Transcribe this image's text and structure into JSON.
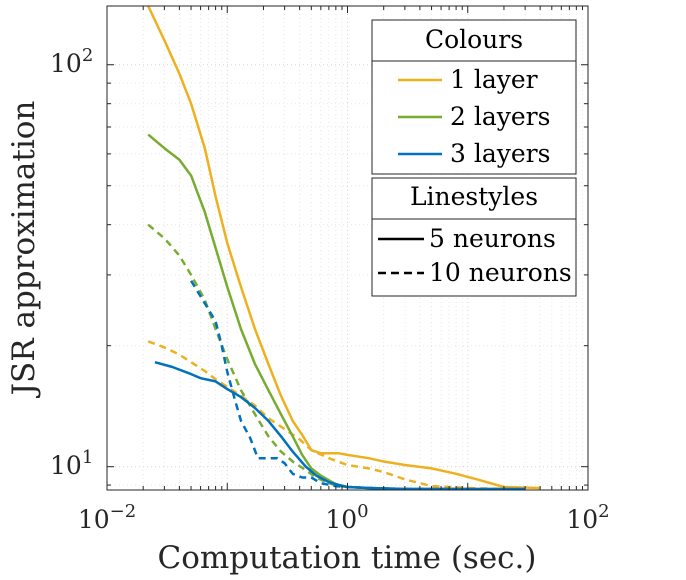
{
  "chart_data": {
    "type": "line",
    "xscale": "log",
    "yscale": "log",
    "xlim": [
      0.01,
      100
    ],
    "ylim": [
      8.75,
      140
    ],
    "xlabel": "Computation time (sec.)",
    "ylabel": "JSR approximation",
    "grid": true,
    "x_ticks": [
      {
        "value": 0.01,
        "mantissa": "10",
        "exp": "−2"
      },
      {
        "value": 1,
        "mantissa": "10",
        "exp": "0"
      },
      {
        "value": 100,
        "mantissa": "10",
        "exp": "2"
      }
    ],
    "y_ticks": [
      {
        "value": 10,
        "mantissa": "10",
        "exp": "1"
      },
      {
        "value": 100,
        "mantissa": "10",
        "exp": "2"
      }
    ],
    "colors": {
      "1 layer": "#EDB120",
      "2 layers": "#77AC30",
      "3 layers": "#0072BD"
    },
    "legend_colours": {
      "title": "Colours",
      "entries": [
        {
          "label": "1 layer",
          "color": "#EDB120"
        },
        {
          "label": "2 layers",
          "color": "#77AC30"
        },
        {
          "label": "3 layers",
          "color": "#0072BD"
        }
      ],
      "location": "top-right"
    },
    "legend_linestyles": {
      "title": "Linestyles",
      "entries": [
        {
          "label": "5 neurons",
          "dash": "solid"
        },
        {
          "label": "10 neurons",
          "dash": "dashed"
        }
      ],
      "location": "right"
    },
    "series": [
      {
        "name": "1 layer, 5 neurons",
        "color": "#EDB120",
        "dash": "solid",
        "x": [
          0.022,
          0.03,
          0.04,
          0.05,
          0.065,
          0.08,
          0.1,
          0.13,
          0.17,
          0.22,
          0.28,
          0.35,
          0.42,
          0.5,
          0.6,
          0.7,
          0.85,
          1.0,
          1.5,
          2.0,
          3.0,
          5.0,
          8.0,
          12.0,
          20.0,
          40.0
        ],
        "y": [
          140,
          115,
          95,
          80,
          62,
          47,
          36,
          28,
          22,
          18,
          15,
          13,
          12,
          11,
          10.8,
          10.8,
          10.8,
          10.7,
          10.5,
          10.3,
          10.1,
          9.9,
          9.6,
          9.3,
          8.9,
          8.85
        ]
      },
      {
        "name": "1 layer, 10 neurons",
        "color": "#EDB120",
        "dash": "dashed",
        "x": [
          0.022,
          0.03,
          0.04,
          0.05,
          0.065,
          0.08,
          0.1,
          0.13,
          0.17,
          0.22,
          0.3,
          0.4,
          0.5,
          0.7,
          1.0,
          1.5,
          2.0,
          3.0,
          5.0,
          10.0,
          20.0
        ],
        "y": [
          20.5,
          19.8,
          19.0,
          18.2,
          17.3,
          16.5,
          15.8,
          15.0,
          14.2,
          13.2,
          12.4,
          11.7,
          11.0,
          10.5,
          10.1,
          9.9,
          9.7,
          9.3,
          8.95,
          8.85,
          8.8
        ]
      },
      {
        "name": "2 layers, 5 neurons",
        "color": "#77AC30",
        "dash": "solid",
        "x": [
          0.022,
          0.03,
          0.04,
          0.05,
          0.065,
          0.08,
          0.1,
          0.13,
          0.17,
          0.22,
          0.28,
          0.35,
          0.42,
          0.5,
          0.6,
          0.7,
          0.8,
          1.0,
          1.5,
          3.0,
          10.0,
          30.0
        ],
        "y": [
          67,
          62,
          58,
          53,
          43,
          35,
          28,
          22,
          18,
          15.5,
          13.5,
          11.9,
          10.7,
          9.9,
          9.5,
          9.25,
          9.05,
          8.9,
          8.85,
          8.8,
          8.8,
          8.8
        ]
      },
      {
        "name": "2 layers, 10 neurons",
        "color": "#77AC30",
        "dash": "dashed",
        "x": [
          0.022,
          0.03,
          0.04,
          0.05,
          0.065,
          0.08,
          0.1,
          0.13,
          0.17,
          0.22,
          0.28,
          0.35,
          0.45,
          0.55,
          0.7,
          0.85,
          1.0,
          1.5,
          3.0,
          10.0
        ],
        "y": [
          40,
          37,
          33.5,
          30,
          26,
          22,
          18.5,
          15.5,
          13.5,
          11.9,
          10.9,
          10.3,
          9.8,
          9.4,
          9.1,
          8.95,
          8.9,
          8.85,
          8.8,
          8.8
        ]
      },
      {
        "name": "3 layers, 5 neurons",
        "color": "#0072BD",
        "dash": "solid",
        "x": [
          0.025,
          0.035,
          0.05,
          0.06,
          0.08,
          0.1,
          0.13,
          0.17,
          0.22,
          0.28,
          0.35,
          0.45,
          0.55,
          0.7,
          0.85,
          1.0,
          1.5,
          3.0,
          10.0,
          30.0
        ],
        "y": [
          18.2,
          17.7,
          17.0,
          16.6,
          16.3,
          15.6,
          14.9,
          14.0,
          13.0,
          11.9,
          10.9,
          10.0,
          9.5,
          9.15,
          9.0,
          8.9,
          8.85,
          8.8,
          8.8,
          8.8
        ]
      },
      {
        "name": "3 layers, 10 neurons",
        "color": "#0072BD",
        "dash": "dashed",
        "x": [
          0.05,
          0.065,
          0.08,
          0.09,
          0.1,
          0.115,
          0.13,
          0.155,
          0.18,
          0.22,
          0.26,
          0.3,
          0.35,
          0.42,
          0.5,
          0.6,
          0.8,
          1.0,
          1.5,
          3.0,
          10.0
        ],
        "y": [
          29,
          25.5,
          23.0,
          20.0,
          17.2,
          14.8,
          13.0,
          11.8,
          10.5,
          10.5,
          10.5,
          10.2,
          9.6,
          9.4,
          9.4,
          9.1,
          8.95,
          8.9,
          8.85,
          8.8,
          8.8
        ]
      }
    ]
  }
}
